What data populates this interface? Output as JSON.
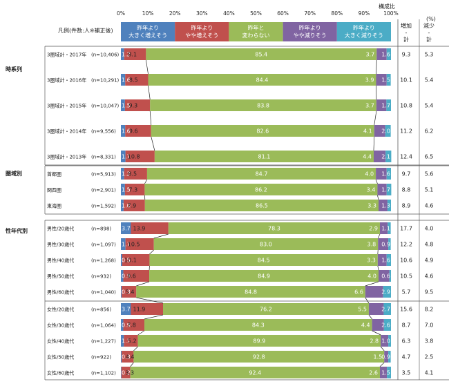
{
  "header": {
    "composition_label": "構成比",
    "pct_unit": "(%)",
    "legend_caption": "凡例(件数:人※補正後)",
    "inc_label": "増加\n-\n計",
    "dec_label": "減少\n-\n計"
  },
  "colors": {
    "very_up": "#4f81bd",
    "up": "#c0504d",
    "same": "#9bbb59",
    "down": "#8064a2",
    "very_down": "#4bacc6"
  },
  "chart_data": {
    "type": "bar",
    "orientation": "horizontal",
    "stacked": true,
    "xlim": [
      0,
      100
    ],
    "x_ticks": [
      "0%",
      "10%",
      "20%",
      "30%",
      "40%",
      "50%",
      "60%",
      "70%",
      "80%",
      "90%",
      "100%"
    ],
    "legend": [
      {
        "key": "very_up",
        "label": "昨年より\n大きく増えそう"
      },
      {
        "key": "up",
        "label": "昨年より\nやや増えそう"
      },
      {
        "key": "same",
        "label": "昨年と\n変わらない"
      },
      {
        "key": "down",
        "label": "昨年より\nやや減りそう"
      },
      {
        "key": "very_down",
        "label": "昨年より\n大きく減りそう"
      }
    ],
    "groups": [
      {
        "label": "時系列",
        "rows": [
          {
            "label": "3圏域計・2017年",
            "n": "(n=10,406)",
            "values": [
              1.2,
              8.1,
              85.4,
              3.7,
              1.6
            ],
            "inc": 9.3,
            "dec": 5.3
          },
          {
            "label": "3圏域計・2016年",
            "n": "(n=10,291)",
            "values": [
              1.6,
              8.5,
              84.4,
              3.9,
              1.5
            ],
            "inc": 10.1,
            "dec": 5.4
          },
          {
            "label": "3圏域計・2015年",
            "n": "(n=10,047)",
            "values": [
              1.5,
              9.3,
              83.8,
              3.7,
              1.7
            ],
            "inc": 10.8,
            "dec": 5.4
          },
          {
            "label": "3圏域計・2014年",
            "n": "(n=9,556)",
            "values": [
              1.6,
              9.6,
              82.6,
              4.1,
              2.0
            ],
            "inc": 11.2,
            "dec": 6.2
          },
          {
            "label": "3圏域計・2013年",
            "n": "(n=8,331)",
            "values": [
              1.7,
              10.8,
              81.1,
              4.4,
              2.1
            ],
            "inc": 12.4,
            "dec": 6.5
          }
        ]
      },
      {
        "label": "圏域別",
        "rows": [
          {
            "label": "首都圏",
            "n": "(n=5,913)",
            "values": [
              1.2,
              8.5,
              84.7,
              4.0,
              1.6
            ],
            "inc": 9.7,
            "dec": 5.6
          },
          {
            "label": "関西圏",
            "n": "(n=2,901)",
            "values": [
              1.5,
              7.3,
              86.2,
              3.4,
              1.7
            ],
            "inc": 8.8,
            "dec": 5.1
          },
          {
            "label": "東海圏",
            "n": "(n=1,592)",
            "values": [
              1.0,
              7.9,
              86.5,
              3.3,
              1.3
            ],
            "inc": 8.9,
            "dec": 4.6
          }
        ]
      },
      {
        "label": "性年代別",
        "rows": [
          {
            "label": "男性/20歳代",
            "n": "(n=898)",
            "values": [
              3.7,
              13.9,
              78.3,
              2.9,
              1.1
            ],
            "inc": 17.7,
            "dec": 4.0
          },
          {
            "label": "男性/30歳代",
            "n": "(n=1,097)",
            "values": [
              1.7,
              10.5,
              83.0,
              3.8,
              0.9
            ],
            "inc": 12.2,
            "dec": 4.8
          },
          {
            "label": "男性/40歳代",
            "n": "(n=1,268)",
            "values": [
              0.5,
              10.1,
              84.5,
              3.3,
              1.6
            ],
            "inc": 10.6,
            "dec": 4.9
          },
          {
            "label": "男性/50歳代",
            "n": "(n=932)",
            "values": [
              0.9,
              9.6,
              84.9,
              4.0,
              0.6
            ],
            "inc": 10.5,
            "dec": 4.6
          },
          {
            "label": "男性/60歳代",
            "n": "(n=1,040)",
            "values": [
              0.3,
              5.4,
              84.8,
              6.6,
              2.9
            ],
            "inc": 5.7,
            "dec": 9.5
          },
          {
            "label": "女性/20歳代",
            "n": "(n=856)",
            "values": [
              3.7,
              11.9,
              76.2,
              5.5,
              2.7
            ],
            "inc": 15.6,
            "dec": 8.2
          },
          {
            "label": "女性/30歳代",
            "n": "(n=1,064)",
            "values": [
              0.9,
              7.8,
              84.3,
              4.4,
              2.6
            ],
            "inc": 8.7,
            "dec": 7.0
          },
          {
            "label": "女性/40歳代",
            "n": "(n=1,227)",
            "values": [
              1.1,
              5.2,
              89.9,
              2.8,
              1.0
            ],
            "inc": 6.3,
            "dec": 3.8
          },
          {
            "label": "女性/50歳代",
            "n": "(n=922)",
            "values": [
              0.3,
              4.4,
              92.8,
              1.5,
              0.9
            ],
            "inc": 4.7,
            "dec": 2.5
          },
          {
            "label": "女性/60歳代",
            "n": "(n=1,102)",
            "values": [
              0.2,
              3.3,
              92.4,
              2.6,
              1.5
            ],
            "inc": 3.5,
            "dec": 4.1
          }
        ]
      }
    ]
  }
}
